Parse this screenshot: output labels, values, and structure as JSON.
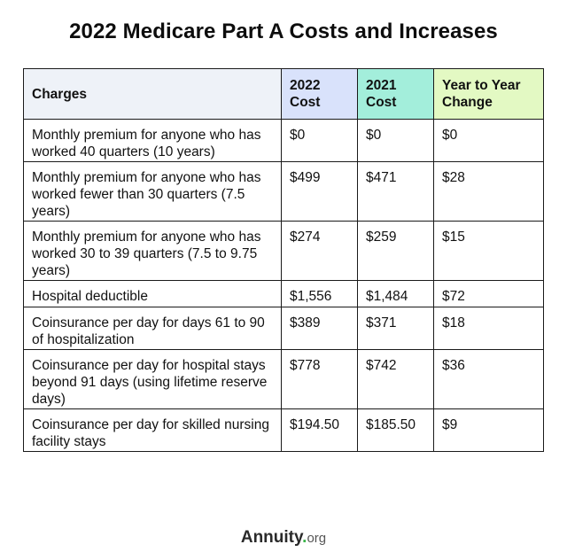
{
  "title": "2022 Medicare Part A Costs and Increases",
  "table": {
    "headers": [
      "Charges",
      "2022 Cost",
      "2021 Cost",
      "Year to Year Change"
    ],
    "rows": [
      [
        "Monthly premium for anyone who has worked 40 quarters (10 years)",
        "$0",
        "$0",
        "$0"
      ],
      [
        "Monthly premium for anyone who has worked fewer than 30 quarters (7.5 years)",
        "$499",
        "$471",
        "$28"
      ],
      [
        "Monthly premium for anyone who has worked 30 to 39 quarters (7.5 to 9.75 years)",
        "$274",
        "$259",
        "$15"
      ],
      [
        "Hospital deductible",
        "$1,556",
        "$1,484",
        "$72"
      ],
      [
        "Coinsurance per day for days 61 to 90 of hospitalization",
        "$389",
        "$371",
        "$18"
      ],
      [
        "Coinsurance per day for hospital stays beyond 91 days (using lifetime reserve days)",
        "$778",
        "$742",
        "$36"
      ],
      [
        "Coinsurance per day for skilled nursing facility stays",
        "$194.50",
        "$185.50",
        "$9"
      ]
    ]
  },
  "footer": {
    "brand": "Annuity",
    "dot": ".",
    "tld": "org"
  },
  "colors": {
    "header_charges": "#eef2f8",
    "header_2022": "#d9e2fb",
    "header_2021": "#a3eedb",
    "header_change": "#e3f9c3",
    "logo_dot": "#3bb54a"
  }
}
